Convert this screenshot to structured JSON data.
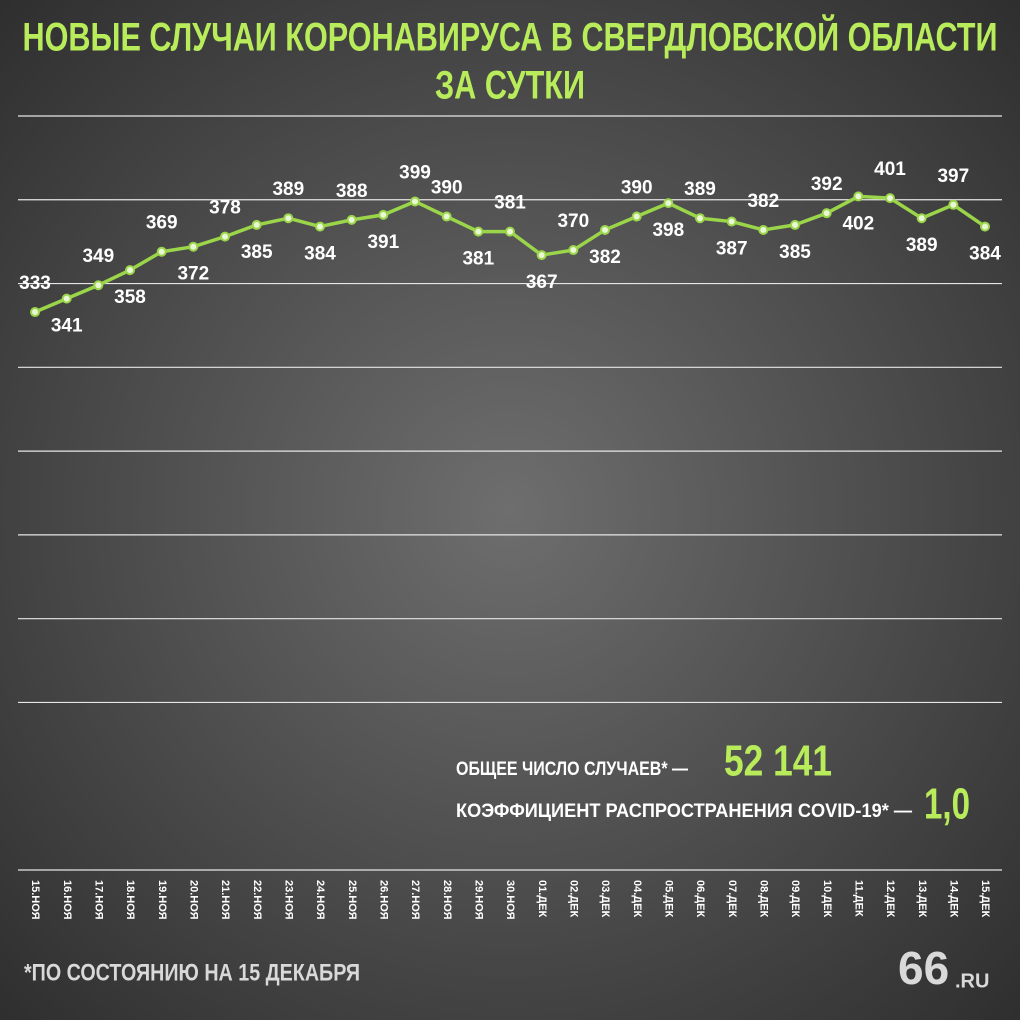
{
  "chart_data": {
    "type": "line",
    "title": [
      "НОВЫЕ СЛУЧАИ КОРОНАВИРУСА В СВЕРДЛОВСКОЙ ОБЛАСТИ",
      "ЗА СУТКИ"
    ],
    "categories": [
      "15.НОЯ",
      "16.НОЯ",
      "17.НОЯ",
      "18.НОЯ",
      "19.НОЯ",
      "20.НОЯ",
      "21.НОЯ",
      "22.НОЯ",
      "23.НОЯ",
      "24.НОЯ",
      "25.НОЯ",
      "26.НОЯ",
      "27.НОЯ",
      "28.НОЯ",
      "29.НОЯ",
      "30.НОЯ",
      "01.ДЕК",
      "02.ДЕК",
      "03.ДЕК",
      "04.ДЕК",
      "05.ДЕК",
      "06.ДЕК",
      "07.ДЕК",
      "08.ДЕК",
      "09.ДЕК",
      "10.ДЕК",
      "11.ДЕК",
      "12.ДЕК",
      "13.ДЕК",
      "14.ДЕК",
      "15.ДЕК"
    ],
    "values": [
      333,
      341,
      349,
      358,
      369,
      372,
      378,
      385,
      389,
      384,
      388,
      391,
      399,
      390,
      381,
      381,
      367,
      370,
      382,
      390,
      398,
      389,
      387,
      382,
      385,
      392,
      402,
      401,
      389,
      397,
      384
    ],
    "color": "#9bd54a",
    "ylim": [
      0,
      450
    ],
    "yticks": [
      0,
      100,
      150,
      200,
      250,
      300,
      350,
      400,
      450
    ],
    "grid": true,
    "annotations": [
      {
        "label": "ОБЩЕЕ ЧИСЛО СЛУЧАЕВ* —",
        "value": "52 141"
      },
      {
        "label": "КОЭФФИЦИЕНТ РАСПРОСТРАНЕНИЯ COVID-19* —",
        "value": "1,0"
      }
    ],
    "footnote": "*ПО СОСТОЯНИЮ НА 15 ДЕКАБРЯ",
    "logo": {
      "main": "66",
      "suffix": ".RU"
    }
  }
}
